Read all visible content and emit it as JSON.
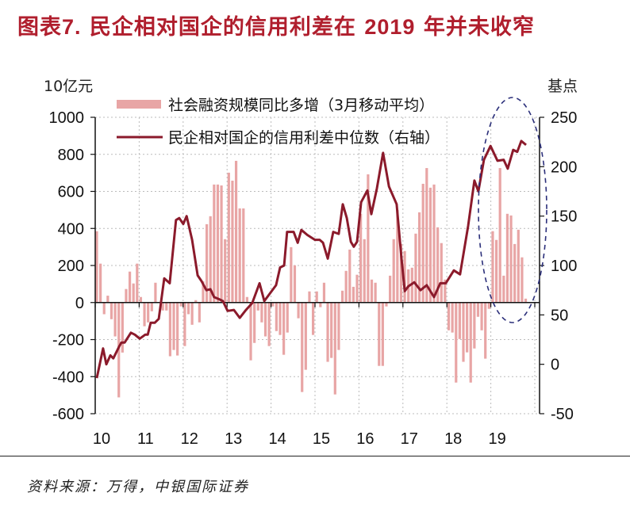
{
  "title": {
    "prefix": "图表",
    "number": "7.",
    "text_a": " 民企相对国企的信用利差在 ",
    "year": "2019",
    "text_b": " 年并未收窄"
  },
  "axes": {
    "left_unit": "10亿元",
    "right_unit": "基点"
  },
  "legend": {
    "bar_label": "社会融资规模同比多增（3月移动平均）",
    "line_label": "民企相对国企的信用利差中位数（右轴）"
  },
  "source": "资料来源：万得，中银国际证券",
  "colors": {
    "title": "#B01E2D",
    "bar": "#E8A5A5",
    "line": "#8B1A2B",
    "ellipse": "#2B2F7A",
    "grid": "#BBBBBB"
  },
  "chart_data": {
    "type": "bar+line",
    "title": "图表7. 民企相对国企的信用利差在2019年并未收窄",
    "xlabel": "",
    "ylabel_left": "10亿元",
    "ylabel_right": "基点",
    "x_tick_labels": [
      "10",
      "11",
      "12",
      "13",
      "14",
      "15",
      "16",
      "17",
      "18",
      "19"
    ],
    "ylim_left": [
      -600,
      1000
    ],
    "yticks_left": [
      1000,
      800,
      600,
      400,
      200,
      0,
      -200,
      -400,
      -600
    ],
    "ylim_right": [
      -50,
      250
    ],
    "yticks_right": [
      250,
      200,
      150,
      100,
      50,
      0,
      -50
    ],
    "grid": true,
    "legend_position": "top-left inside",
    "annotation": "dashed ellipse highlighting 2019",
    "series": [
      {
        "name": "社会融资规模同比多增（3月移动平均）",
        "type": "bar",
        "axis": "left",
        "unit": "10亿元",
        "month_index_from_2010_01": [
          0,
          1,
          2,
          3,
          4,
          5,
          6,
          7,
          8,
          9,
          10,
          11,
          12,
          13,
          14,
          15,
          16,
          18,
          19,
          20,
          21,
          22,
          23,
          24,
          25,
          26,
          27,
          28,
          29,
          30,
          31,
          32,
          33,
          34,
          35,
          36,
          37,
          38,
          39,
          40,
          41,
          42,
          43,
          44,
          45,
          46,
          47,
          48,
          49,
          50,
          51,
          52,
          53,
          54,
          55,
          56,
          57,
          58,
          59,
          60,
          61,
          62,
          63,
          64,
          65,
          66,
          67,
          68,
          69,
          70,
          71,
          72,
          73,
          74,
          75,
          76,
          77,
          78,
          79,
          80,
          81,
          82,
          83,
          84,
          85,
          86,
          87,
          88,
          89,
          90,
          91,
          92,
          93,
          94,
          95,
          96,
          97,
          98,
          99,
          100,
          101,
          102,
          103,
          104,
          105,
          106,
          107,
          108,
          109,
          110,
          111,
          112,
          113,
          114,
          115,
          116,
          117
        ],
        "values": [
          385,
          210,
          -63,
          37,
          -90,
          -183,
          -512,
          -270,
          73,
          167,
          103,
          210,
          30,
          -128,
          -107,
          -47,
          107,
          -43,
          -43,
          -290,
          -256,
          -286,
          -21,
          -235,
          -63,
          -120,
          13,
          -107,
          115,
          423,
          466,
          637,
          637,
          632,
          342,
          701,
          658,
          765,
          508,
          508,
          30,
          -312,
          -218,
          -43,
          -107,
          -183,
          -235,
          -21,
          -154,
          -175,
          -282,
          -162,
          299,
          201,
          -85,
          -483,
          -363,
          60,
          -175,
          60,
          -25,
          107,
          -320,
          -299,
          -496,
          -256,
          64,
          171,
          286,
          85,
          150,
          479,
          342,
          692,
          124,
          107,
          -342,
          -342,
          -21,
          145,
          342,
          500,
          316,
          278,
          179,
          188,
          372,
          487,
          641,
          726,
          620,
          637,
          406,
          321,
          124,
          -150,
          -162,
          -432,
          -197,
          -320,
          -269,
          -432,
          -248,
          -77,
          -150,
          -303,
          -34,
          385,
          338,
          726,
          145,
          479,
          470,
          316,
          393,
          244,
          21
        ]
      },
      {
        "name": "民企相对国企的信用利差中位数（右轴）",
        "type": "line",
        "axis": "right",
        "unit": "基点",
        "month_index_from_2010_01": [
          0,
          1.7,
          2.6,
          3.7,
          4.5,
          6.1,
          6.7,
          7.6,
          9.3,
          10.4,
          11.7,
          13.2,
          13.9,
          14.7,
          15.8,
          16.9,
          18.4,
          19.9,
          21.6,
          22.5,
          23.6,
          24.5,
          26,
          27.5,
          28.6,
          29.9,
          31,
          32,
          33.3,
          34.4,
          35.7,
          37.4,
          39,
          40.7,
          42.4,
          44.4,
          45.7,
          48.9,
          50,
          51.1,
          51.9,
          53.7,
          54.8,
          55.8,
          57.4,
          59.5,
          60.8,
          61.7,
          63,
          64.5,
          66,
          67.1,
          68.2,
          69.3,
          70.1,
          71,
          72.1,
          73.8,
          74.9,
          76.4,
          78.1,
          79.7,
          81.8,
          83.1,
          84,
          85,
          86.6,
          88.3,
          90,
          92,
          93.7,
          95.2,
          97.4,
          99.1,
          101.3,
          103,
          104.1,
          105.6,
          107.4,
          109.3,
          111,
          112.1,
          113.6,
          114.7,
          115.8,
          117.1
        ],
        "values": [
          -14,
          16,
          0,
          9,
          6,
          18,
          22,
          22,
          32,
          30,
          26,
          30,
          30,
          42,
          42,
          46,
          87,
          82,
          146,
          148,
          142,
          150,
          126,
          90,
          84,
          75,
          76,
          68,
          66,
          64,
          54,
          55,
          47,
          55,
          62,
          82,
          64,
          80,
          98,
          100,
          134,
          134,
          123,
          136,
          131,
          126,
          126,
          123,
          107,
          134,
          132,
          162,
          148,
          124,
          119,
          124,
          164,
          176,
          152,
          178,
          214,
          180,
          162,
          108,
          74,
          79,
          83,
          75,
          80,
          68,
          82,
          82,
          95,
          91,
          140,
          186,
          175,
          207,
          221,
          206,
          207,
          198,
          217,
          215,
          226,
          222
        ]
      }
    ]
  }
}
